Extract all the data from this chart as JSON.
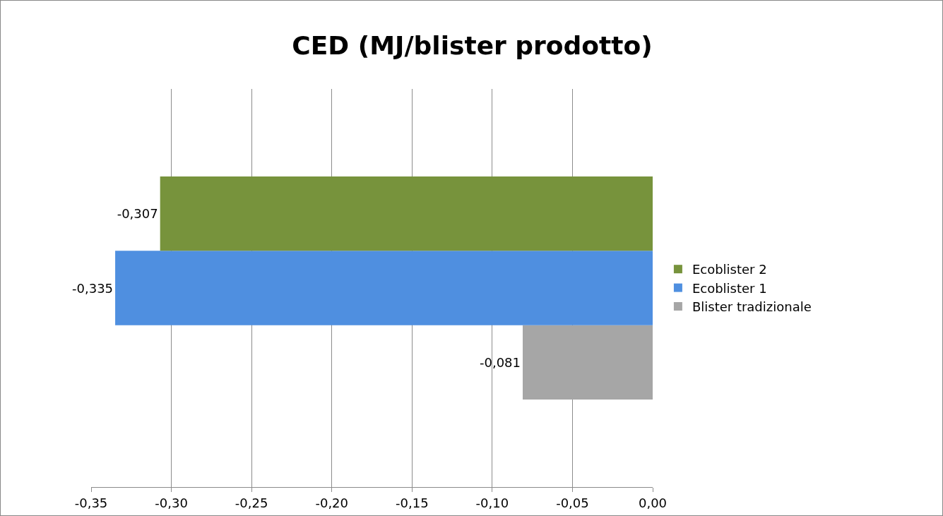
{
  "chart_data": {
    "type": "bar",
    "orientation": "horizontal",
    "title": "CED (MJ/blister prodotto)",
    "categories": [
      null
    ],
    "series": [
      {
        "name": "Ecoblister 2",
        "color": "#77933c",
        "values": [
          -0.307
        ],
        "value_labels": [
          "-0,307"
        ]
      },
      {
        "name": "Ecoblister 1",
        "color": "#4f8fe0",
        "values": [
          -0.335
        ],
        "value_labels": [
          "-0,335"
        ]
      },
      {
        "name": "Blister tradizionale",
        "color": "#a6a6a6",
        "values": [
          -0.081
        ],
        "value_labels": [
          "-0,081"
        ]
      }
    ],
    "xlim": [
      -0.35,
      0
    ],
    "xticks": [
      {
        "value": -0.35,
        "label": "-0,35"
      },
      {
        "value": -0.3,
        "label": "-0,30"
      },
      {
        "value": -0.25,
        "label": "-0,25"
      },
      {
        "value": -0.2,
        "label": "-0,20"
      },
      {
        "value": -0.15,
        "label": "-0,15"
      },
      {
        "value": -0.1,
        "label": "-0,10"
      },
      {
        "value": -0.05,
        "label": "-0,05"
      },
      {
        "value": 0,
        "label": "0,00"
      }
    ],
    "grid": "x",
    "legend": "right"
  }
}
